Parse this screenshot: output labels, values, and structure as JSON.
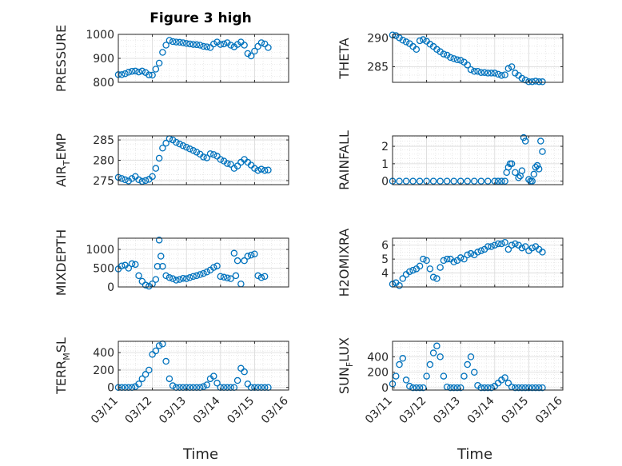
{
  "figure": {
    "title": "Figure 3 high",
    "xlabel": "Time",
    "x_ticks": [
      "03/11",
      "03/12",
      "03/13",
      "03/14",
      "03/15",
      "03/16"
    ],
    "marker_color": "#0072BD"
  },
  "chart_data": [
    {
      "type": "scatter",
      "name": "pressure",
      "ylabel": "PRESSURE",
      "ylabel_sub": "",
      "ylim": [
        800,
        1000
      ],
      "yticks": [
        "800",
        "900",
        "1000"
      ],
      "yticks_num": [
        800,
        900,
        1000
      ],
      "grid": true,
      "xlim": [
        "03/11",
        "03/16"
      ],
      "x": [
        11.0,
        11.1,
        11.2,
        11.3,
        11.4,
        11.5,
        11.6,
        11.7,
        11.8,
        11.9,
        12.0,
        12.1,
        12.2,
        12.3,
        12.4,
        12.5,
        12.6,
        12.7,
        12.8,
        12.9,
        13.0,
        13.1,
        13.2,
        13.3,
        13.4,
        13.5,
        13.6,
        13.7,
        13.8,
        13.9,
        14.0,
        14.1,
        14.2,
        14.3,
        14.4,
        14.5,
        14.6,
        14.7,
        14.8,
        14.9,
        15.0,
        15.1,
        15.2,
        15.3,
        15.4
      ],
      "y": [
        832,
        832,
        836,
        842,
        846,
        847,
        843,
        847,
        841,
        831,
        830,
        855,
        880,
        925,
        955,
        975,
        970,
        968,
        967,
        965,
        962,
        960,
        958,
        957,
        955,
        950,
        948,
        945,
        960,
        968,
        958,
        960,
        965,
        955,
        948,
        958,
        968,
        955,
        920,
        910,
        930,
        950,
        965,
        960,
        945
      ]
    },
    {
      "type": "scatter",
      "name": "theta",
      "ylabel": "THETA",
      "ylabel_sub": "",
      "ylim": [
        282.3,
        290.6
      ],
      "yticks": [
        "285",
        "290"
      ],
      "yticks_num": [
        285,
        290
      ],
      "grid": true,
      "xlim": [
        "03/11",
        "03/16"
      ],
      "x": [
        11.0,
        11.1,
        11.2,
        11.3,
        11.4,
        11.5,
        11.6,
        11.7,
        11.8,
        11.9,
        12.0,
        12.1,
        12.2,
        12.3,
        12.4,
        12.5,
        12.6,
        12.7,
        12.8,
        12.9,
        13.0,
        13.1,
        13.2,
        13.3,
        13.4,
        13.5,
        13.6,
        13.7,
        13.8,
        13.9,
        14.0,
        14.1,
        14.2,
        14.3,
        14.4,
        14.5,
        14.6,
        14.7,
        14.8,
        14.9,
        15.0,
        15.1,
        15.2,
        15.3,
        15.4
      ],
      "y": [
        290.5,
        290.4,
        290.0,
        289.6,
        289.3,
        289.0,
        288.5,
        288.0,
        289.5,
        289.7,
        289.4,
        288.9,
        288.5,
        288.0,
        287.6,
        287.2,
        287.0,
        286.6,
        286.4,
        286.2,
        286.1,
        285.8,
        285.3,
        284.5,
        284.2,
        284.2,
        284.0,
        284.0,
        283.9,
        283.9,
        283.9,
        283.7,
        283.5,
        283.6,
        284.7,
        285.0,
        283.9,
        283.5,
        283.0,
        282.7,
        282.4,
        282.4,
        282.5,
        282.4,
        282.4
      ]
    },
    {
      "type": "scatter",
      "name": "air-temp",
      "ylabel": "AIR",
      "ylabel_sub": "T",
      "ylabel_rest": "EMP",
      "ylim": [
        274,
        286
      ],
      "yticks": [
        "275",
        "280",
        "285"
      ],
      "yticks_num": [
        275,
        280,
        285
      ],
      "grid": true,
      "xlim": [
        "03/11",
        "03/16"
      ],
      "x": [
        11.0,
        11.1,
        11.2,
        11.3,
        11.4,
        11.5,
        11.6,
        11.7,
        11.8,
        11.9,
        12.0,
        12.1,
        12.2,
        12.3,
        12.4,
        12.5,
        12.6,
        12.7,
        12.8,
        12.9,
        13.0,
        13.1,
        13.2,
        13.3,
        13.4,
        13.5,
        13.6,
        13.7,
        13.8,
        13.9,
        14.0,
        14.1,
        14.2,
        14.3,
        14.4,
        14.5,
        14.6,
        14.7,
        14.8,
        14.9,
        15.0,
        15.1,
        15.2,
        15.3,
        15.4
      ],
      "y": [
        275.8,
        275.5,
        275.2,
        274.9,
        275.5,
        276.0,
        275.2,
        274.8,
        275.0,
        275.3,
        276.0,
        278.0,
        280.5,
        283.0,
        284.2,
        285.3,
        285.0,
        284.4,
        284.0,
        283.6,
        283.2,
        282.8,
        282.4,
        282.0,
        281.5,
        280.8,
        280.6,
        281.6,
        281.4,
        281.0,
        280.2,
        279.8,
        279.2,
        279.0,
        278.0,
        278.6,
        279.5,
        280.2,
        279.5,
        278.8,
        278.0,
        277.5,
        277.8,
        277.5,
        277.6
      ]
    },
    {
      "type": "scatter",
      "name": "rainfall",
      "ylabel": "RAINFALL",
      "ylabel_sub": "",
      "ylim": [
        -0.2,
        2.6
      ],
      "yticks": [
        "0",
        "1",
        "2"
      ],
      "yticks_num": [
        0,
        1,
        2
      ],
      "grid": true,
      "xlim": [
        "03/11",
        "03/16"
      ],
      "x": [
        11.0,
        11.2,
        11.4,
        11.6,
        11.8,
        12.0,
        12.2,
        12.4,
        12.6,
        12.8,
        13.0,
        13.2,
        13.4,
        13.6,
        13.8,
        14.0,
        14.1,
        14.2,
        14.3,
        14.35,
        14.4,
        14.45,
        14.5,
        14.6,
        14.7,
        14.75,
        14.8,
        14.85,
        14.9,
        15.0,
        15.05,
        15.1,
        15.15,
        15.2,
        15.25,
        15.3,
        15.35,
        15.4
      ],
      "y": [
        0,
        0,
        0,
        0,
        0,
        0,
        0,
        0,
        0,
        0,
        0,
        0,
        0,
        0,
        0,
        0,
        0,
        0,
        0,
        0.5,
        0.8,
        1.0,
        1.0,
        0.5,
        0.2,
        0.3,
        0.6,
        2.5,
        2.3,
        0.1,
        0,
        0,
        0.4,
        0.8,
        0.9,
        0.7,
        2.3,
        1.7
      ]
    },
    {
      "type": "scatter",
      "name": "mixdepth",
      "ylabel": "MIXDEPTH",
      "ylabel_sub": "",
      "ylim": [
        0,
        1300
      ],
      "yticks": [
        "0",
        "500",
        "1000"
      ],
      "yticks_num": [
        0,
        500,
        1000
      ],
      "grid": true,
      "xlim": [
        "03/11",
        "03/16"
      ],
      "x": [
        11.0,
        11.1,
        11.2,
        11.3,
        11.4,
        11.5,
        11.6,
        11.7,
        11.8,
        11.9,
        12.0,
        12.1,
        12.15,
        12.2,
        12.25,
        12.3,
        12.4,
        12.5,
        12.6,
        12.7,
        12.8,
        12.9,
        13.0,
        13.1,
        13.2,
        13.3,
        13.4,
        13.5,
        13.6,
        13.7,
        13.8,
        13.9,
        14.0,
        14.1,
        14.2,
        14.3,
        14.4,
        14.45,
        14.5,
        14.6,
        14.7,
        14.8,
        14.9,
        15.0,
        15.1,
        15.2,
        15.3
      ],
      "y": [
        480,
        560,
        580,
        500,
        620,
        600,
        300,
        150,
        50,
        20,
        80,
        200,
        550,
        1250,
        820,
        550,
        300,
        250,
        220,
        180,
        200,
        230,
        220,
        250,
        280,
        300,
        330,
        360,
        400,
        450,
        520,
        560,
        280,
        260,
        240,
        220,
        900,
        300,
        700,
        80,
        700,
        820,
        850,
        880,
        300,
        250,
        280
      ]
    },
    {
      "type": "scatter",
      "name": "h2omixra",
      "ylabel": "H2OMIXRA",
      "ylabel_sub": "",
      "ylim": [
        3.0,
        6.5
      ],
      "yticks": [
        "4",
        "5",
        "6"
      ],
      "yticks_num": [
        4,
        5,
        6
      ],
      "grid": true,
      "xlim": [
        "03/11",
        "03/16"
      ],
      "x": [
        11.0,
        11.1,
        11.2,
        11.3,
        11.4,
        11.5,
        11.6,
        11.7,
        11.8,
        11.9,
        12.0,
        12.1,
        12.2,
        12.3,
        12.4,
        12.5,
        12.6,
        12.7,
        12.8,
        12.9,
        13.0,
        13.1,
        13.2,
        13.3,
        13.4,
        13.5,
        13.6,
        13.7,
        13.8,
        13.9,
        14.0,
        14.1,
        14.2,
        14.3,
        14.4,
        14.5,
        14.6,
        14.7,
        14.8,
        14.9,
        15.0,
        15.1,
        15.2,
        15.3,
        15.4
      ],
      "y": [
        3.2,
        3.3,
        3.1,
        3.6,
        3.9,
        4.1,
        4.2,
        4.3,
        4.5,
        5.0,
        4.9,
        4.3,
        3.7,
        3.6,
        4.4,
        4.9,
        5.0,
        5.0,
        4.8,
        4.9,
        5.1,
        5.0,
        5.3,
        5.4,
        5.3,
        5.5,
        5.6,
        5.7,
        5.9,
        5.9,
        6.0,
        6.1,
        6.1,
        6.2,
        5.7,
        6.0,
        6.1,
        6.0,
        5.8,
        5.9,
        5.6,
        5.8,
        5.9,
        5.7,
        5.5
      ]
    },
    {
      "type": "scatter",
      "name": "terrmsl",
      "ylabel": "TERR",
      "ylabel_sub": "M",
      "ylabel_rest": "SL",
      "ylim": [
        -30,
        530
      ],
      "yticks": [
        "0",
        "200",
        "400"
      ],
      "yticks_num": [
        0,
        200,
        400
      ],
      "grid": true,
      "xlim": [
        "03/11",
        "03/16"
      ],
      "x": [
        11.0,
        11.1,
        11.2,
        11.3,
        11.4,
        11.5,
        11.6,
        11.7,
        11.8,
        11.9,
        12.0,
        12.1,
        12.2,
        12.3,
        12.4,
        12.5,
        12.6,
        12.7,
        12.8,
        12.9,
        13.0,
        13.1,
        13.2,
        13.3,
        13.4,
        13.5,
        13.6,
        13.7,
        13.8,
        13.9,
        14.0,
        14.1,
        14.2,
        14.3,
        14.4,
        14.5,
        14.6,
        14.7,
        14.8,
        14.9,
        15.0,
        15.1,
        15.2,
        15.3,
        15.4
      ],
      "y": [
        0,
        0,
        0,
        0,
        0,
        10,
        40,
        100,
        150,
        200,
        380,
        420,
        480,
        500,
        300,
        100,
        20,
        0,
        0,
        0,
        0,
        0,
        0,
        0,
        0,
        10,
        30,
        100,
        130,
        50,
        0,
        0,
        0,
        0,
        0,
        80,
        220,
        180,
        40,
        0,
        0,
        0,
        0,
        0,
        0
      ]
    },
    {
      "type": "scatter",
      "name": "sunflux",
      "ylabel": "SUN",
      "ylabel_sub": "F",
      "ylabel_rest": "LUX",
      "ylim": [
        -30,
        600
      ],
      "yticks": [
        "0",
        "200",
        "400"
      ],
      "yticks_num": [
        0,
        200,
        400
      ],
      "grid": true,
      "xlim": [
        "03/11",
        "03/16"
      ],
      "x": [
        11.0,
        11.1,
        11.2,
        11.3,
        11.4,
        11.5,
        11.6,
        11.7,
        11.8,
        11.9,
        12.0,
        12.1,
        12.2,
        12.3,
        12.4,
        12.5,
        12.6,
        12.7,
        12.8,
        12.9,
        13.0,
        13.1,
        13.2,
        13.3,
        13.4,
        13.5,
        13.6,
        13.7,
        13.8,
        13.9,
        14.0,
        14.1,
        14.2,
        14.3,
        14.4,
        14.5,
        14.6,
        14.7,
        14.8,
        14.9,
        15.0,
        15.1,
        15.2,
        15.3,
        15.4
      ],
      "y": [
        50,
        150,
        300,
        380,
        100,
        20,
        0,
        0,
        0,
        0,
        150,
        300,
        450,
        540,
        400,
        150,
        10,
        0,
        0,
        0,
        0,
        150,
        300,
        400,
        200,
        30,
        0,
        0,
        0,
        0,
        20,
        60,
        100,
        130,
        60,
        10,
        0,
        0,
        0,
        0,
        0,
        0,
        0,
        0,
        0
      ]
    }
  ]
}
